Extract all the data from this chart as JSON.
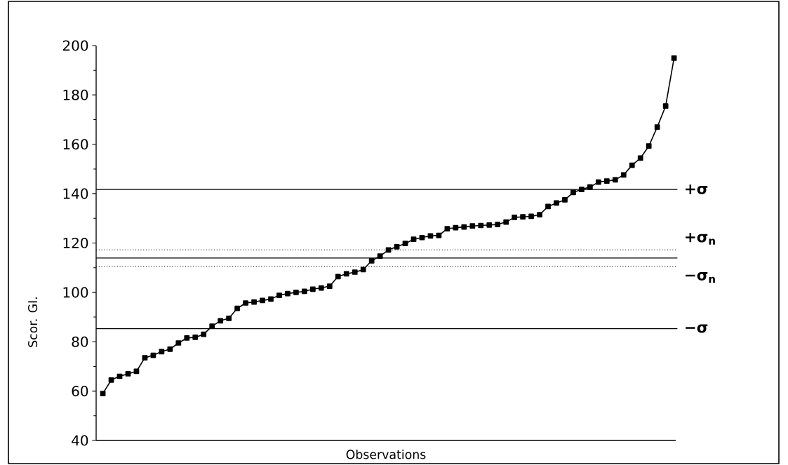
{
  "chart_data": {
    "type": "line",
    "xlabel": "Observations",
    "ylabel": "Scor. GI.",
    "categories": [
      null,
      null,
      null,
      null,
      null,
      null,
      null,
      null,
      null,
      null,
      null,
      null,
      null,
      null,
      null,
      null,
      null,
      null,
      null,
      null,
      null,
      null,
      null,
      null,
      null,
      null,
      null,
      null,
      null,
      null,
      null,
      null,
      null,
      null,
      null,
      null,
      null,
      null,
      null,
      null,
      null,
      null,
      null,
      null,
      null,
      null,
      null,
      null,
      null,
      null,
      null,
      null,
      null,
      null,
      null,
      null,
      null,
      null,
      null,
      null,
      null,
      null,
      null,
      null,
      null,
      null,
      null,
      null,
      null
    ],
    "series": [
      {
        "color": "#000000",
        "values": [
          59,
          64.5,
          66,
          67,
          68,
          73.5,
          74.5,
          76,
          77,
          79.5,
          81.5,
          81.8,
          83,
          86.3,
          88.5,
          89.5,
          93.5,
          95.7,
          96.1,
          96.7,
          97.3,
          98.8,
          99.5,
          100,
          100.4,
          101.3,
          101.8,
          102.5,
          106.4,
          107.5,
          108.2,
          109.2,
          112.8,
          114.7,
          117.2,
          118.5,
          119.8,
          121.5,
          122.2,
          122.9,
          123.1,
          125.8,
          126.2,
          126.5,
          126.9,
          127.1,
          127.3,
          127.5,
          128.5,
          130.4,
          130.6,
          130.8,
          131.5,
          134.8,
          136.2,
          137.5,
          140.5,
          141.7,
          142.7,
          144.7,
          145.1,
          145.6,
          147.6,
          151.5,
          154.4,
          159.3,
          167,
          175.5,
          194.9
        ]
      }
    ],
    "ylim": [
      40,
      200
    ],
    "yticks": [
      40,
      60,
      80,
      100,
      120,
      140,
      160,
      180,
      200
    ],
    "marker": "square",
    "line_style": "solid",
    "grid": false,
    "ref_lines": [
      {
        "axis": "y",
        "value": 141.7,
        "label": "+σ",
        "line_style": "solid",
        "color": "#000000"
      },
      {
        "axis": "y",
        "value": 117.2,
        "label": "+σ$_{n}$",
        "line_style": "dotted",
        "color": "#000000"
      },
      {
        "axis": "y",
        "value": 113.9,
        "line_style": "solid",
        "color": "#000000"
      },
      {
        "axis": "y",
        "value": 110.6,
        "label": "−σ$_{n}$",
        "line_style": "dotted",
        "color": "#000000"
      },
      {
        "axis": "y",
        "value": 85.3,
        "label": "−σ",
        "line_style": "solid",
        "color": "#000000"
      }
    ]
  }
}
